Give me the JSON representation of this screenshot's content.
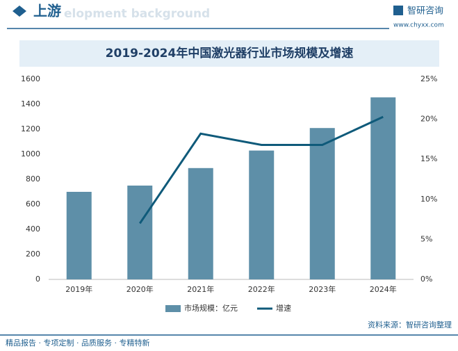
{
  "header": {
    "section": "上游",
    "background_text": "elopment background",
    "brand": "智研咨询",
    "url": "www.chyxx.com"
  },
  "chart_data": {
    "type": "bar_line",
    "title": "2019-2024年中国激光器行业市场规模及增速",
    "categories": [
      "2019年",
      "2020年",
      "2021年",
      "2022年",
      "2023年",
      "2024年"
    ],
    "series": [
      {
        "name": "市场规模：亿元",
        "type": "bar",
        "color": "#5e8fa8",
        "values": [
          700,
          750,
          890,
          1030,
          1210,
          1455
        ]
      },
      {
        "name": "增速",
        "type": "line",
        "axis": "y2",
        "color": "#0f5a7a",
        "values": [
          null,
          7.0,
          18.2,
          16.8,
          16.8,
          20.3
        ]
      }
    ],
    "ylim": [
      0,
      1600
    ],
    "yticks": [
      0,
      200,
      400,
      600,
      800,
      1000,
      1200,
      1400,
      1600
    ],
    "y2lim": [
      0,
      25
    ],
    "y2ticks": [
      {
        "value": 0,
        "label": "0%"
      },
      {
        "value": 5,
        "label": "5%"
      },
      {
        "value": 10,
        "label": "10%"
      },
      {
        "value": 15,
        "label": "15%"
      },
      {
        "value": 20,
        "label": "20%"
      },
      {
        "value": 25,
        "label": "25%"
      }
    ]
  },
  "footer": {
    "services": "精品报告 · 专项定制 · 品质服务 · 专精特新",
    "source": "资料来源：智研咨询整理"
  }
}
